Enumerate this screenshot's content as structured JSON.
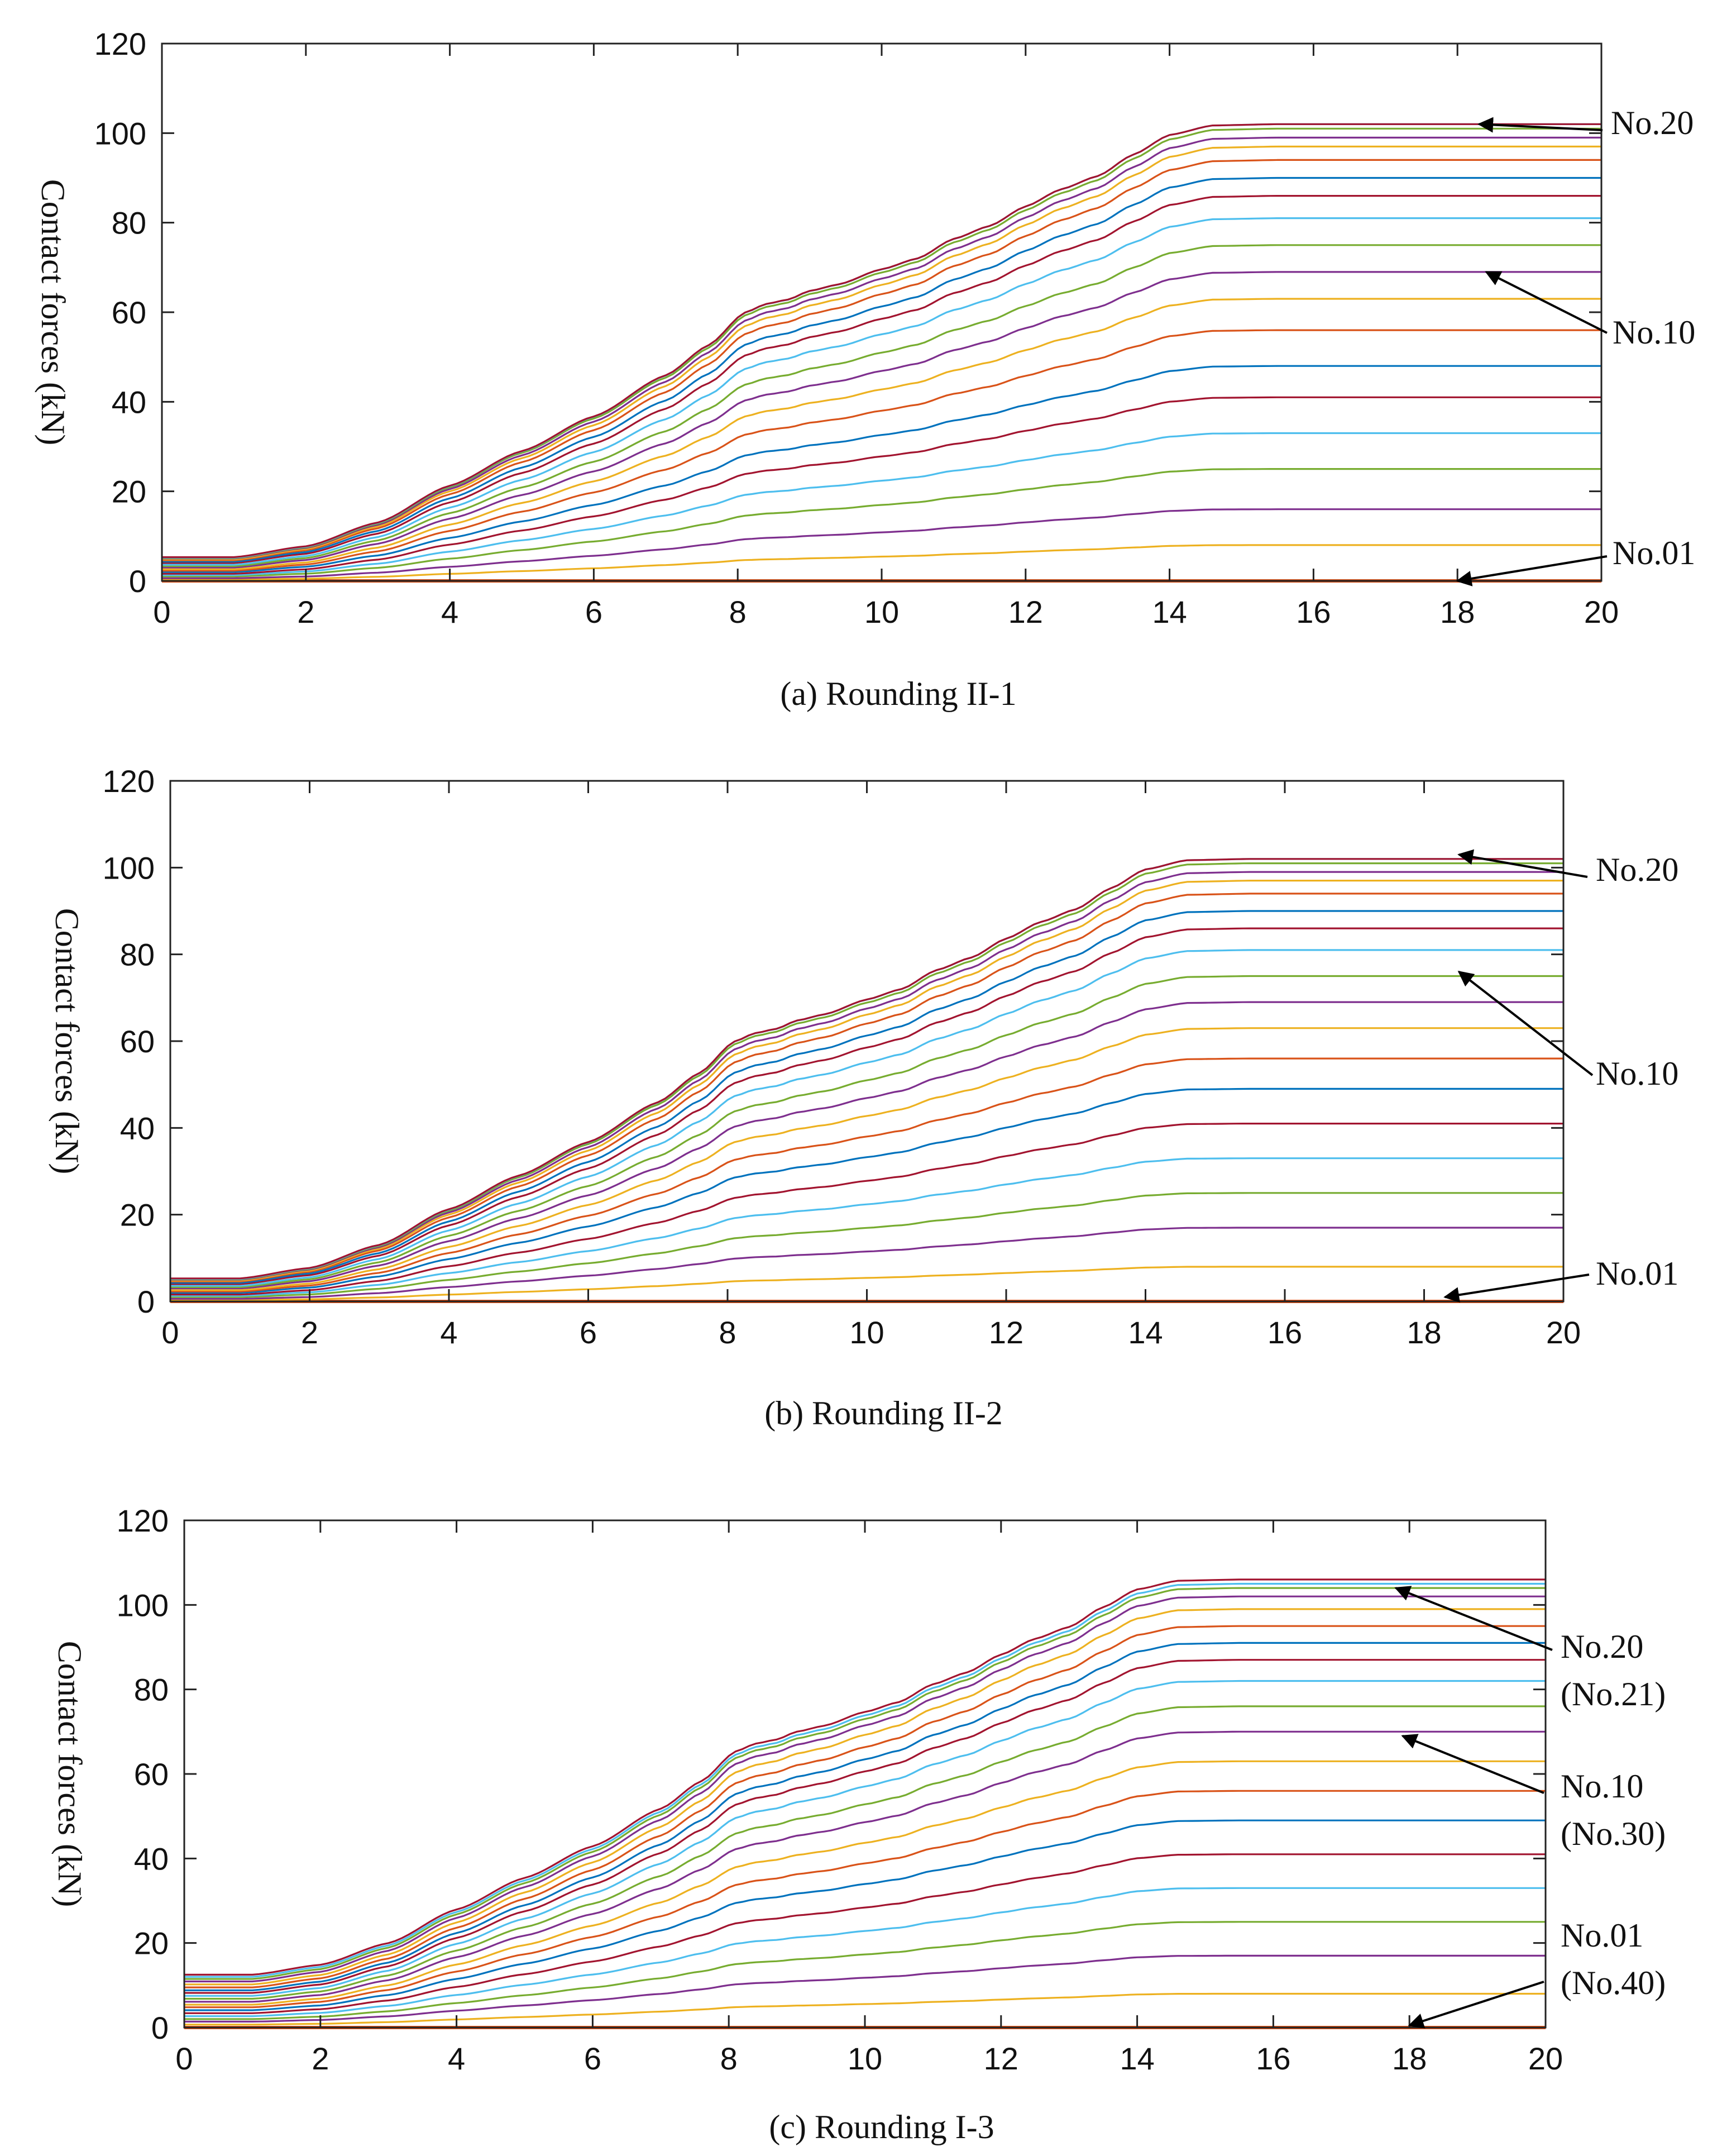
{
  "chart_data": [
    {
      "type": "line",
      "caption": "(a) Rounding II-1",
      "ylabel": "Contact forces (kN)",
      "xlabel": "",
      "xlim": [
        0,
        20
      ],
      "ylim": [
        0,
        120
      ],
      "xticks": [
        0,
        2,
        4,
        6,
        8,
        10,
        12,
        14,
        16,
        18,
        20
      ],
      "yticks": [
        0,
        20,
        40,
        60,
        80,
        100,
        120
      ],
      "grid": false,
      "series_count": 20,
      "final_values": [
        0,
        8,
        16,
        25,
        33,
        41,
        48,
        56,
        63,
        69,
        75,
        81,
        86,
        90,
        94,
        97,
        99,
        101,
        102,
        102
      ],
      "initial_values": [
        0,
        0.3,
        0.6,
        1.0,
        1.3,
        1.6,
        2.0,
        2.3,
        2.6,
        3.0,
        3.3,
        3.6,
        4.0,
        4.3,
        4.6,
        4.8,
        5.0,
        5.1,
        5.2,
        5.3
      ],
      "annotations": [
        {
          "label": "No.20",
          "x": 18.3,
          "y": 102
        },
        {
          "label": "No.10",
          "x": 18.4,
          "y": 69
        },
        {
          "label": "No.01",
          "x": 18.0,
          "y": 0
        }
      ]
    },
    {
      "type": "line",
      "caption": "(b) Rounding II-2",
      "ylabel": "Contact forces (kN)",
      "xlabel": "",
      "xlim": [
        0,
        20
      ],
      "ylim": [
        0,
        120
      ],
      "xticks": [
        0,
        2,
        4,
        6,
        8,
        10,
        12,
        14,
        16,
        18,
        20
      ],
      "yticks": [
        0,
        20,
        40,
        60,
        80,
        100,
        120
      ],
      "grid": false,
      "series_count": 20,
      "final_values": [
        0,
        8,
        17,
        25,
        33,
        41,
        49,
        56,
        63,
        69,
        75,
        81,
        86,
        90,
        94,
        97,
        99,
        101,
        102,
        102
      ],
      "initial_values": [
        0,
        0.3,
        0.6,
        1.0,
        1.3,
        1.6,
        2.0,
        2.3,
        2.6,
        3.0,
        3.3,
        3.6,
        4.0,
        4.3,
        4.6,
        4.8,
        5.0,
        5.1,
        5.2,
        5.3
      ],
      "annotations": [
        {
          "label": "No.20",
          "x": 18.5,
          "y": 103
        },
        {
          "label": "No.10",
          "x": 18.5,
          "y": 76
        },
        {
          "label": "No.01",
          "x": 18.3,
          "y": 1
        }
      ]
    },
    {
      "type": "line",
      "caption": "(c) Rounding I-3",
      "ylabel": "Contact forces (kN)",
      "xlabel": "",
      "xlim": [
        0,
        20
      ],
      "ylim": [
        0,
        120
      ],
      "xticks": [
        0,
        2,
        4,
        6,
        8,
        10,
        12,
        14,
        16,
        18,
        20
      ],
      "yticks": [
        0,
        20,
        40,
        60,
        80,
        100,
        120
      ],
      "grid": false,
      "series_count": 20,
      "final_values": [
        0,
        8,
        17,
        25,
        33,
        41,
        49,
        56,
        63,
        70,
        76,
        82,
        87,
        91,
        95,
        99,
        102,
        104,
        105,
        106
      ],
      "initial_values": [
        0,
        0.7,
        1.4,
        2.0,
        2.7,
        3.4,
        4.1,
        4.8,
        5.4,
        6.1,
        6.8,
        7.5,
        8.2,
        8.8,
        9.5,
        10.2,
        10.9,
        11.5,
        12.0,
        12.5
      ],
      "annotations": [
        {
          "label": "No.20",
          "x": 17.8,
          "y": 104
        },
        {
          "label": "(No.21)",
          "x": 0,
          "y": 0
        },
        {
          "label": "No.10",
          "x": 17.9,
          "y": 69
        },
        {
          "label": "(No.30)",
          "x": 0,
          "y": 0
        },
        {
          "label": "No.01",
          "x": 18.0,
          "y": 0.5
        },
        {
          "label": "(No.40)",
          "x": 0,
          "y": 0
        }
      ]
    }
  ],
  "palette": [
    "#0072bd",
    "#d95319",
    "#edb120",
    "#7e2f8e",
    "#77ac30",
    "#4dbeee",
    "#a2142f"
  ]
}
